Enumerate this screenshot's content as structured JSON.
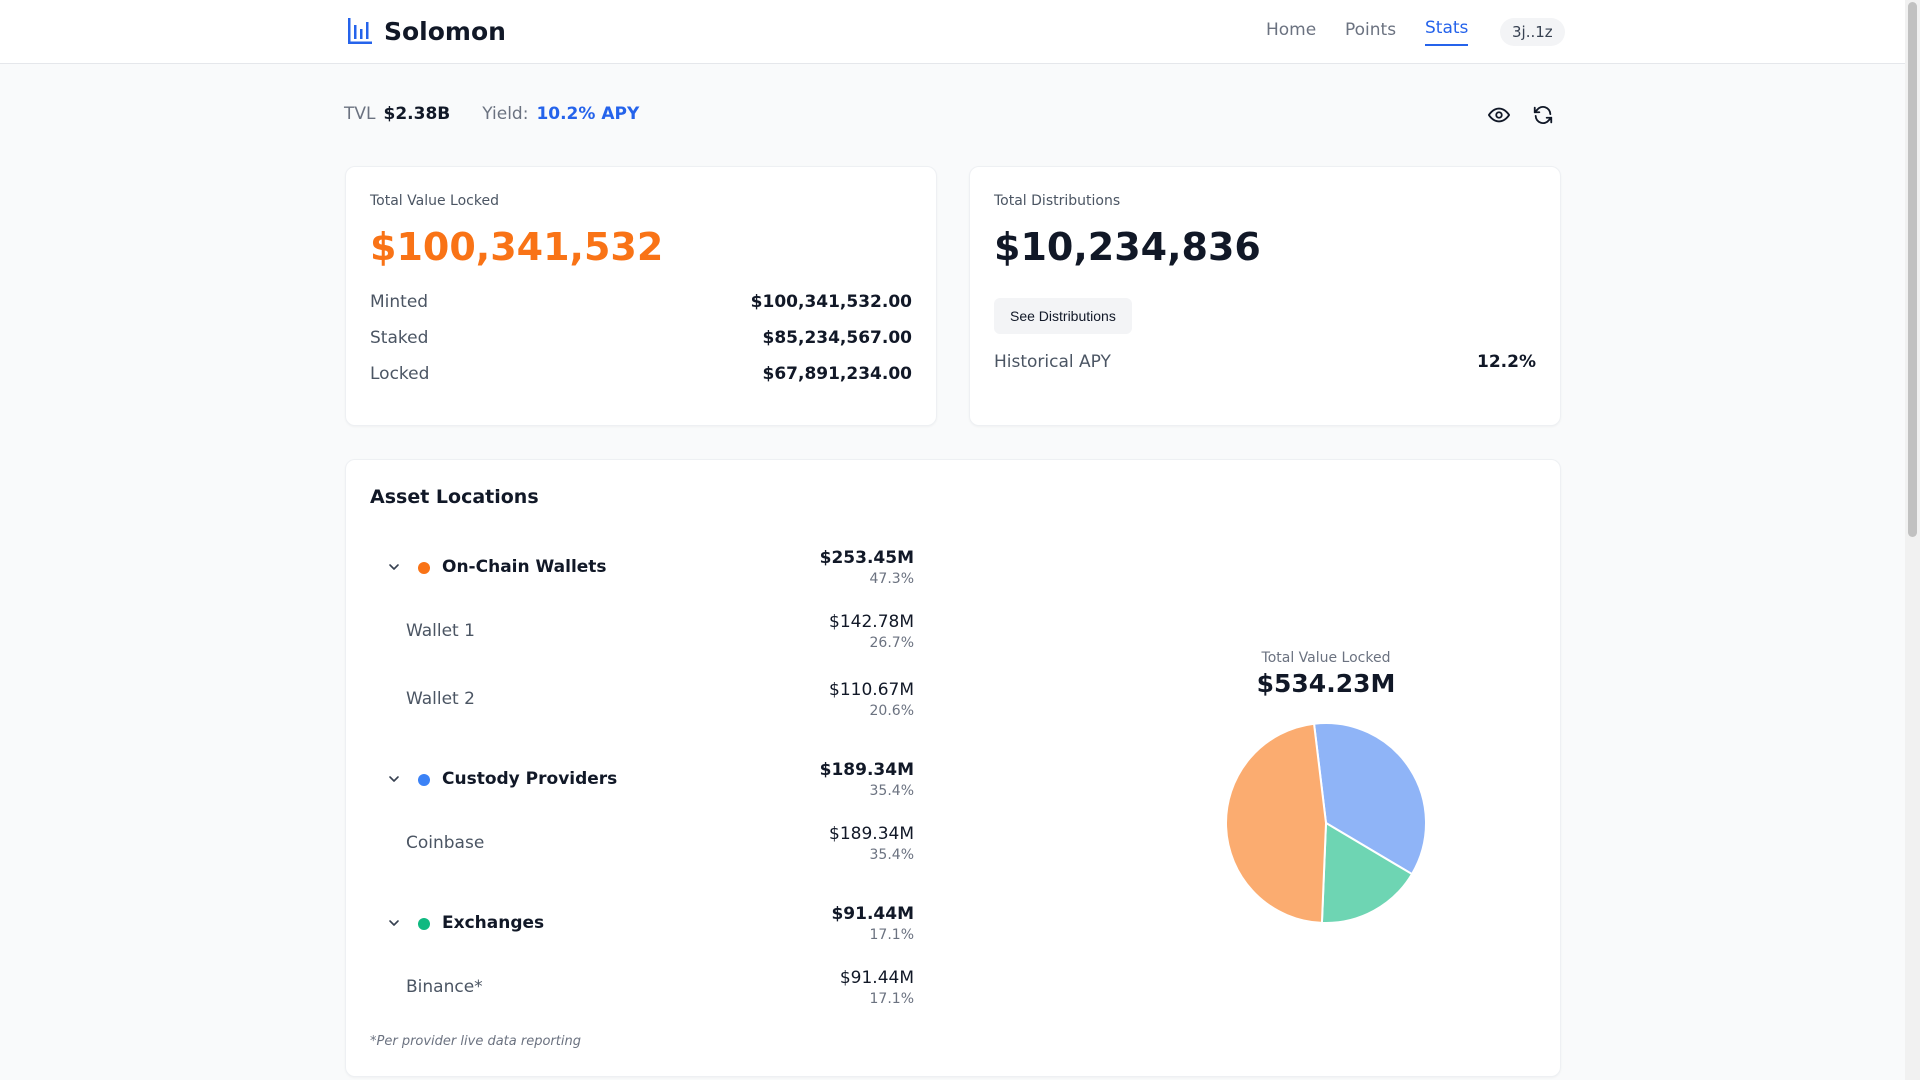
{
  "app": {
    "name": "Solomon",
    "nav": [
      {
        "label": "Home"
      },
      {
        "label": "Points"
      },
      {
        "label": "Stats"
      }
    ],
    "wallet": "3j..1z",
    "colors": {
      "accent": "#2563eb",
      "orange": "#f97316",
      "blue": "#3b82f6",
      "green": "#10b981"
    }
  },
  "stats_bar": {
    "tvl_label": "TVL",
    "tvl_value": "$2.38B",
    "yield_label": "Yield:",
    "yield_value": "10.2% APY"
  },
  "tvl_card": {
    "label": "Total Value Locked",
    "value": "$100,341,532",
    "rows": [
      {
        "label": "Minted",
        "value": "$100,341,532.00"
      },
      {
        "label": "Staked",
        "value": "$85,234,567.00"
      },
      {
        "label": "Locked",
        "value": "$67,891,234.00"
      }
    ]
  },
  "dist_card": {
    "label": "Total Distributions",
    "value": "$10,234,836",
    "button": "See Distributions",
    "apy_label": "Historical APY",
    "apy_value": "12.2%"
  },
  "asset_locations": {
    "title": "Asset Locations",
    "groups": [
      {
        "name": "On-Chain Wallets",
        "amount": "$253.45M",
        "pct": "47.3%",
        "color": "#f97316",
        "items": [
          {
            "name": "Wallet 1",
            "amount": "$142.78M",
            "pct": "26.7%"
          },
          {
            "name": "Wallet 2",
            "amount": "$110.67M",
            "pct": "20.6%"
          }
        ]
      },
      {
        "name": "Custody Providers",
        "amount": "$189.34M",
        "pct": "35.4%",
        "color": "#3b82f6",
        "items": [
          {
            "name": "Coinbase",
            "amount": "$189.34M",
            "pct": "35.4%"
          }
        ]
      },
      {
        "name": "Exchanges",
        "amount": "$91.44M",
        "pct": "17.1%",
        "color": "#10b981",
        "items": [
          {
            "name": "Binance*",
            "amount": "$91.44M",
            "pct": "17.1%"
          }
        ]
      }
    ],
    "footnote": "*Per provider live data reporting"
  },
  "chart_data": {
    "type": "pie",
    "title": "Total Value Locked",
    "total": "$534.23M",
    "categories": [
      "Custody Providers",
      "Exchanges",
      "On-Chain Wallets"
    ],
    "values": [
      189.34,
      91.44,
      253.45
    ],
    "colors": [
      "#8fb4f7",
      "#6ed5b3",
      "#fbac70"
    ]
  }
}
